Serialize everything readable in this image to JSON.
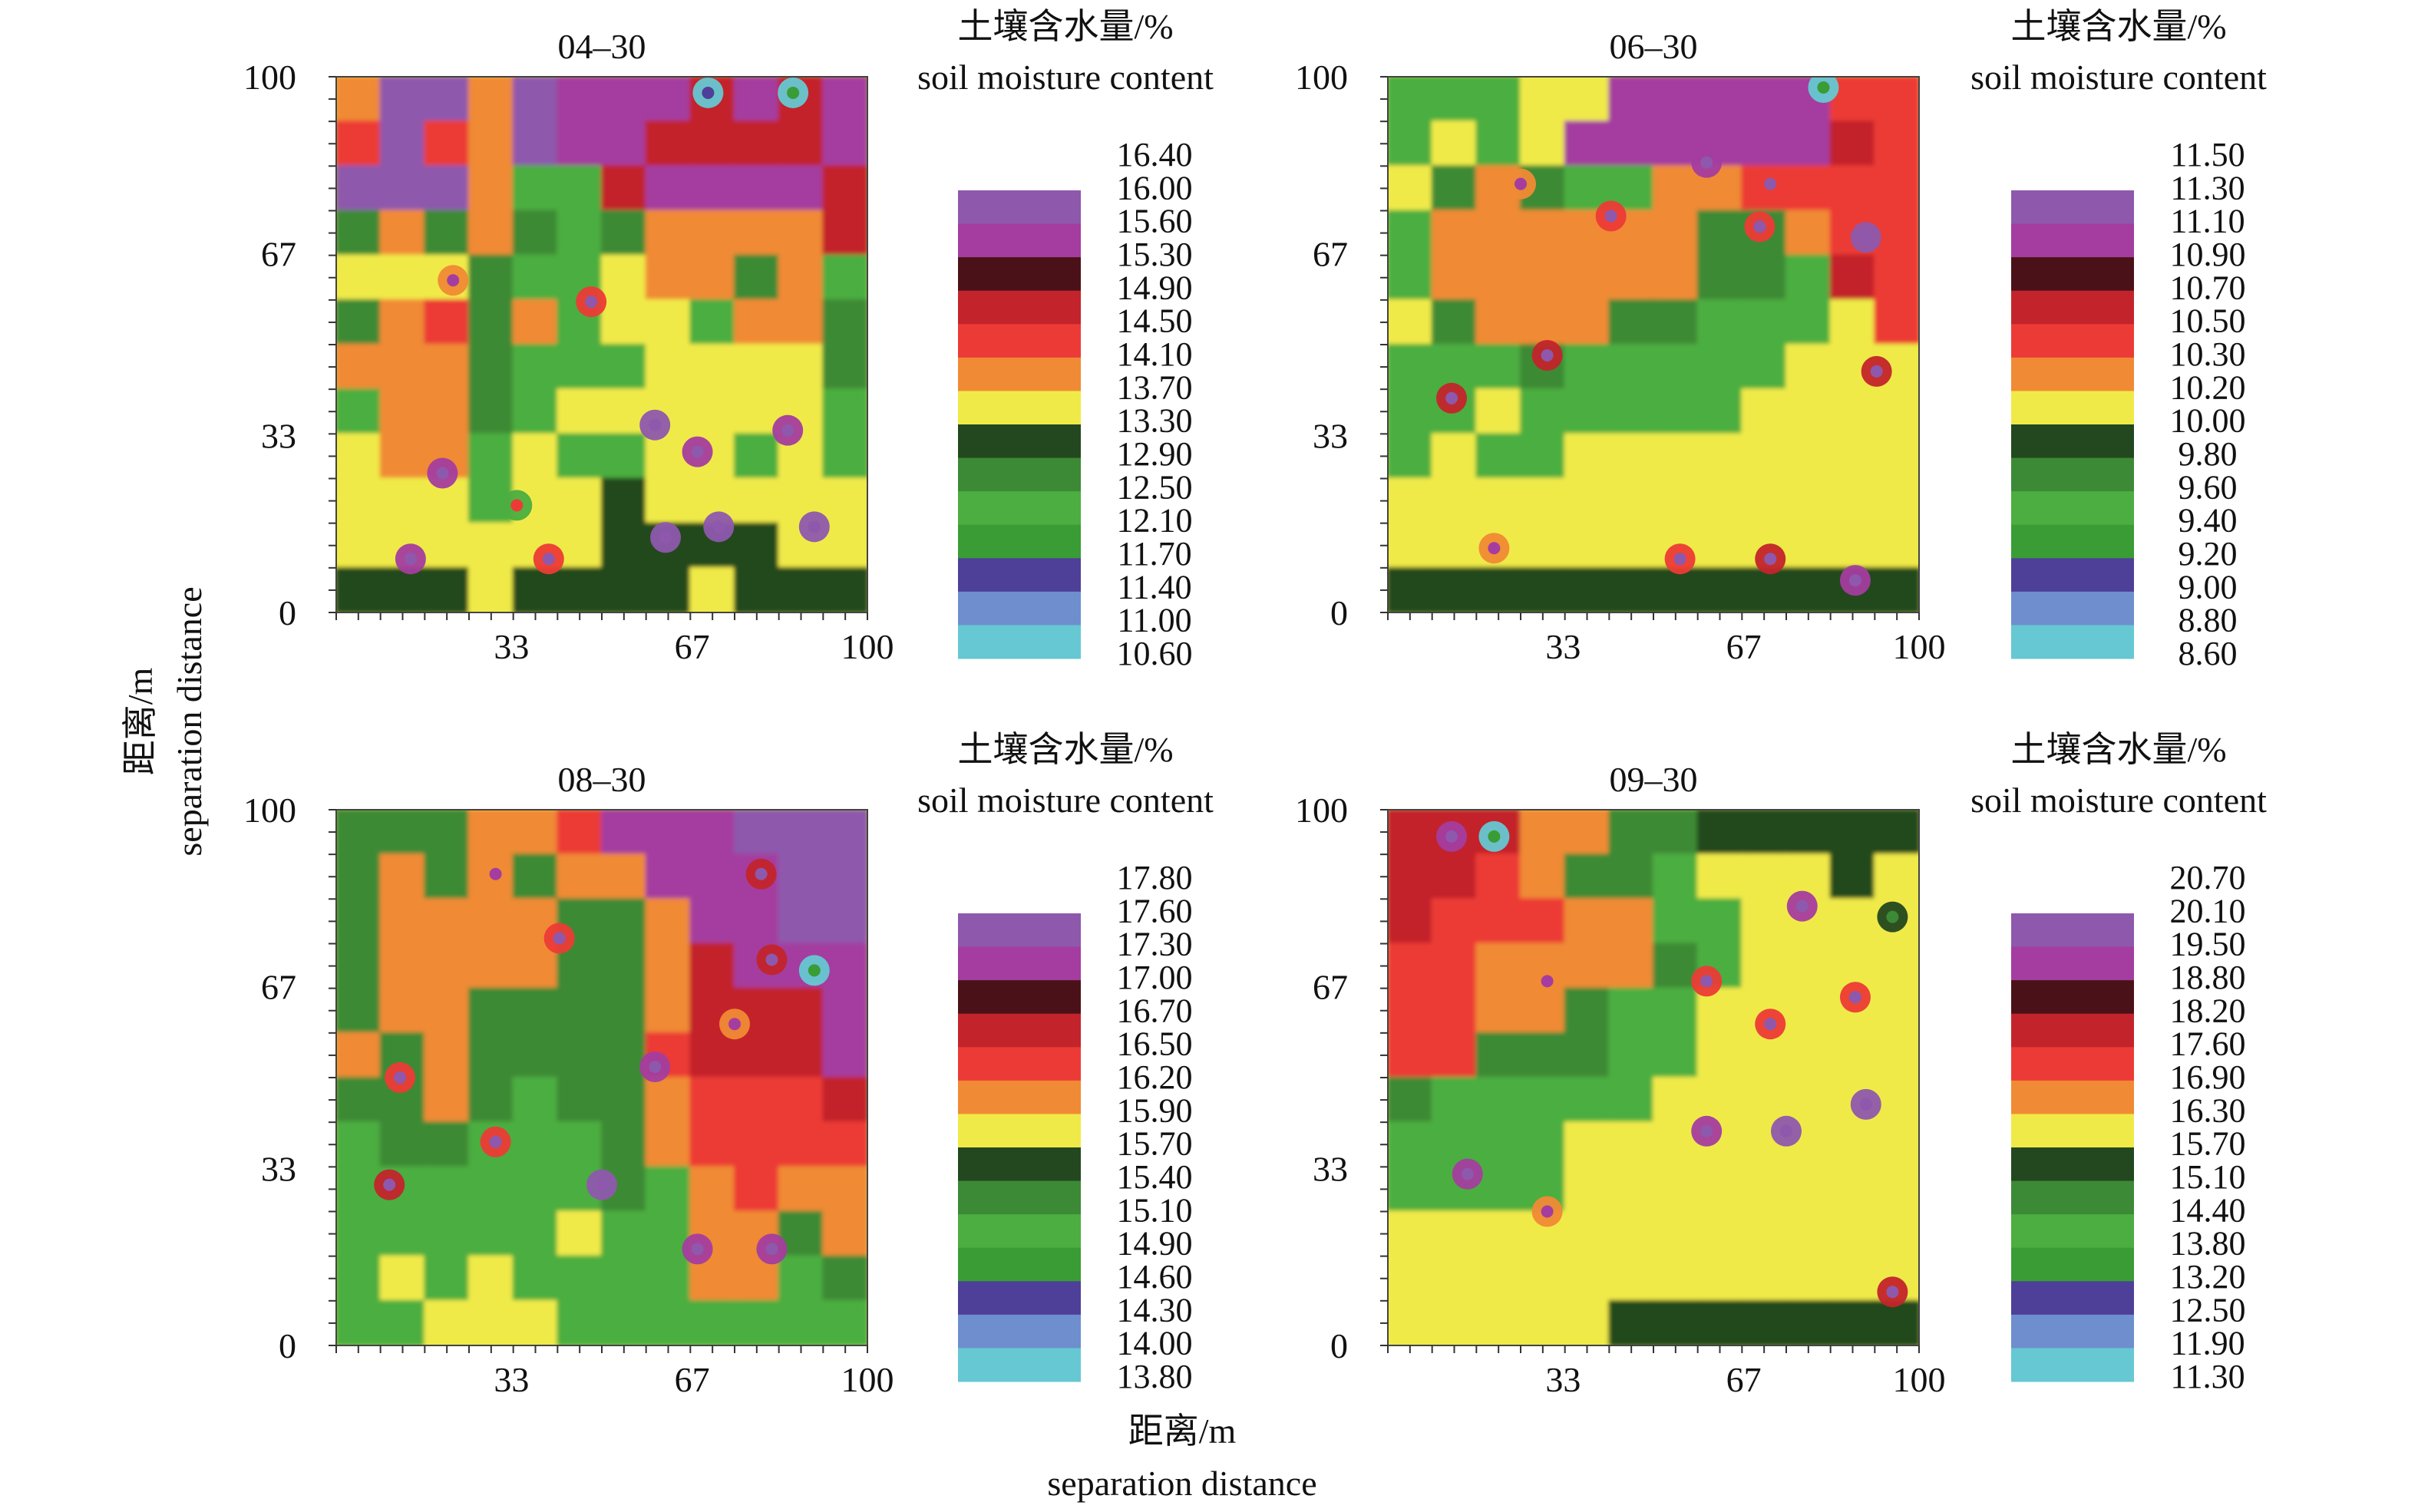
{
  "figure": {
    "y_axis_label_cn": "距离/m",
    "y_axis_label_en": "separation distance",
    "x_axis_label_cn": "距离/m",
    "x_axis_label_en": "separation distance"
  },
  "palette": [
    "#66c8d2",
    "#6e8ecd",
    "#4e3f98",
    "#3a9c35",
    "#4cae40",
    "#3c8a36",
    "#23481f",
    "#f0ea48",
    "#f08a35",
    "#ec3b36",
    "#c3242b",
    "#4a1218",
    "#a43d9f",
    "#8e58ad"
  ],
  "chart_data": [
    {
      "type": "heatmap",
      "title": "04–30",
      "xlabel": "距离/m separation distance",
      "ylabel": "距离/m separation distance",
      "xlim": [
        0,
        100
      ],
      "ylim": [
        0,
        100
      ],
      "x_ticks": [
        "33",
        "67",
        "100"
      ],
      "y_ticks": [
        "100",
        "67",
        "33",
        "0"
      ],
      "colorbar_title": [
        "土壤含水量/%",
        "soil moisture content"
      ],
      "colorbar_levels": [
        "16.40",
        "16.00",
        "15.60",
        "15.30",
        "14.90",
        "14.50",
        "14.10",
        "13.70",
        "13.30",
        "12.90",
        "12.50",
        "12.10",
        "11.70",
        "11.40",
        "11.00",
        "10.60"
      ],
      "value_range": [
        10.6,
        16.4
      ],
      "grid": [
        [
          4,
          0,
          0,
          4,
          0,
          1,
          1,
          1,
          2,
          1,
          2,
          1
        ],
        [
          3,
          0,
          3,
          4,
          0,
          1,
          1,
          2,
          2,
          2,
          2,
          1
        ],
        [
          0,
          0,
          0,
          4,
          6,
          6,
          2,
          1,
          1,
          1,
          1,
          2
        ],
        [
          5,
          4,
          5,
          4,
          5,
          6,
          5,
          4,
          4,
          4,
          4,
          2
        ],
        [
          7,
          7,
          7,
          5,
          6,
          6,
          7,
          4,
          4,
          5,
          4,
          6
        ],
        [
          5,
          4,
          3,
          5,
          4,
          6,
          7,
          7,
          6,
          4,
          4,
          5
        ],
        [
          4,
          4,
          4,
          5,
          6,
          6,
          6,
          7,
          7,
          7,
          7,
          5
        ],
        [
          6,
          4,
          4,
          5,
          6,
          7,
          7,
          7,
          7,
          7,
          7,
          6
        ],
        [
          7,
          4,
          4,
          6,
          7,
          6,
          6,
          7,
          7,
          6,
          7,
          6
        ],
        [
          7,
          7,
          7,
          6,
          7,
          7,
          8,
          7,
          7,
          7,
          7,
          7
        ],
        [
          7,
          7,
          7,
          7,
          7,
          7,
          8,
          8,
          8,
          8,
          7,
          7
        ],
        [
          8,
          8,
          8,
          7,
          8,
          8,
          8,
          8,
          7,
          8,
          8,
          8
        ]
      ],
      "spots": [
        [
          0.7,
          0.03,
          13
        ],
        [
          0.86,
          0.03,
          12
        ],
        [
          0.22,
          0.38,
          4
        ],
        [
          0.48,
          0.42,
          3
        ],
        [
          0.6,
          0.65,
          0
        ],
        [
          0.68,
          0.7,
          1
        ],
        [
          0.85,
          0.66,
          1
        ],
        [
          0.2,
          0.74,
          1
        ],
        [
          0.14,
          0.9,
          1
        ],
        [
          0.34,
          0.8,
          6
        ],
        [
          0.4,
          0.9,
          3
        ],
        [
          0.62,
          0.86,
          0
        ],
        [
          0.72,
          0.84,
          0
        ],
        [
          0.9,
          0.84,
          0
        ]
      ]
    },
    {
      "type": "heatmap",
      "title": "06–30",
      "xlabel": "距离/m separation distance",
      "ylabel": "距离/m separation distance",
      "xlim": [
        0,
        100
      ],
      "ylim": [
        0,
        100
      ],
      "x_ticks": [
        "33",
        "67",
        "100"
      ],
      "y_ticks": [
        "100",
        "67",
        "33",
        "0"
      ],
      "colorbar_title": [
        "土壤含水量/%",
        "soil moisture content"
      ],
      "colorbar_levels": [
        "11.50",
        "11.30",
        "11.10",
        "10.90",
        "10.70",
        "10.50",
        "10.30",
        "10.20",
        "10.00",
        "9.80",
        "9.60",
        "9.40",
        "9.20",
        "9.00",
        "8.80",
        "8.60"
      ],
      "value_range": [
        8.6,
        11.5
      ],
      "grid": [
        [
          6,
          6,
          6,
          7,
          7,
          1,
          1,
          1,
          1,
          1,
          3,
          3
        ],
        [
          6,
          7,
          6,
          7,
          1,
          1,
          1,
          1,
          1,
          1,
          2,
          3
        ],
        [
          7,
          5,
          4,
          5,
          6,
          6,
          4,
          4,
          3,
          3,
          3,
          3
        ],
        [
          6,
          4,
          4,
          4,
          4,
          4,
          4,
          5,
          5,
          4,
          3,
          3
        ],
        [
          6,
          4,
          4,
          4,
          4,
          4,
          4,
          5,
          5,
          6,
          2,
          3
        ],
        [
          7,
          5,
          4,
          4,
          4,
          5,
          5,
          6,
          6,
          6,
          7,
          3
        ],
        [
          6,
          6,
          6,
          5,
          6,
          6,
          6,
          6,
          6,
          7,
          7,
          7
        ],
        [
          6,
          6,
          7,
          6,
          6,
          6,
          6,
          6,
          7,
          7,
          7,
          7
        ],
        [
          6,
          7,
          6,
          6,
          7,
          7,
          7,
          7,
          7,
          7,
          7,
          7
        ],
        [
          7,
          7,
          7,
          7,
          7,
          7,
          7,
          7,
          7,
          7,
          7,
          7
        ],
        [
          7,
          7,
          7,
          7,
          7,
          7,
          7,
          7,
          7,
          7,
          7,
          7
        ],
        [
          8,
          8,
          8,
          8,
          8,
          8,
          8,
          8,
          8,
          8,
          8,
          8
        ]
      ],
      "spots": [
        [
          0.12,
          0.6,
          2
        ],
        [
          0.3,
          0.52,
          2
        ],
        [
          0.42,
          0.26,
          3
        ],
        [
          0.7,
          0.28,
          3
        ],
        [
          0.6,
          0.16,
          1
        ],
        [
          0.92,
          0.55,
          2
        ],
        [
          0.82,
          0.02,
          12
        ],
        [
          0.72,
          0.2,
          3
        ],
        [
          0.25,
          0.2,
          4
        ],
        [
          0.55,
          0.9,
          3
        ],
        [
          0.72,
          0.9,
          2
        ],
        [
          0.88,
          0.94,
          1
        ],
        [
          0.2,
          0.88,
          4
        ],
        [
          0.9,
          0.3,
          0
        ]
      ]
    },
    {
      "type": "heatmap",
      "title": "08–30",
      "xlabel": "距离/m separation distance",
      "ylabel": "距离/m separation distance",
      "xlim": [
        0,
        100
      ],
      "ylim": [
        0,
        100
      ],
      "x_ticks": [
        "33",
        "67",
        "100"
      ],
      "y_ticks": [
        "100",
        "67",
        "33",
        "0"
      ],
      "colorbar_title": [
        "土壤含水量/%",
        "soil moisture content"
      ],
      "colorbar_levels": [
        "17.80",
        "17.60",
        "17.30",
        "17.00",
        "16.70",
        "16.50",
        "16.20",
        "15.90",
        "15.70",
        "15.40",
        "15.10",
        "14.90",
        "14.60",
        "14.30",
        "14.00",
        "13.80"
      ],
      "value_range": [
        13.8,
        17.8
      ],
      "grid": [
        [
          5,
          5,
          5,
          4,
          4,
          3,
          1,
          1,
          1,
          0,
          0,
          0
        ],
        [
          5,
          4,
          5,
          4,
          5,
          4,
          4,
          1,
          1,
          1,
          0,
          0
        ],
        [
          5,
          4,
          4,
          4,
          4,
          5,
          5,
          4,
          1,
          1,
          0,
          0
        ],
        [
          5,
          4,
          4,
          4,
          4,
          5,
          5,
          4,
          2,
          1,
          1,
          1
        ],
        [
          5,
          4,
          4,
          5,
          5,
          5,
          5,
          4,
          2,
          2,
          2,
          1
        ],
        [
          4,
          5,
          4,
          5,
          5,
          5,
          5,
          3,
          2,
          2,
          2,
          1
        ],
        [
          5,
          5,
          4,
          5,
          6,
          5,
          5,
          4,
          3,
          3,
          3,
          2
        ],
        [
          6,
          5,
          5,
          6,
          6,
          6,
          5,
          4,
          3,
          3,
          3,
          3
        ],
        [
          6,
          6,
          6,
          6,
          6,
          6,
          5,
          6,
          4,
          3,
          4,
          4
        ],
        [
          6,
          6,
          6,
          6,
          6,
          7,
          6,
          6,
          4,
          4,
          5,
          4
        ],
        [
          6,
          7,
          6,
          7,
          6,
          6,
          6,
          6,
          4,
          4,
          6,
          5
        ],
        [
          6,
          6,
          7,
          7,
          7,
          6,
          6,
          6,
          6,
          6,
          6,
          6
        ]
      ],
      "spots": [
        [
          0.9,
          0.3,
          12
        ],
        [
          0.82,
          0.28,
          2
        ],
        [
          0.8,
          0.12,
          2
        ],
        [
          0.75,
          0.4,
          4
        ],
        [
          0.6,
          0.48,
          1
        ],
        [
          0.5,
          0.7,
          0
        ],
        [
          0.3,
          0.62,
          3
        ],
        [
          0.12,
          0.5,
          3
        ],
        [
          0.3,
          0.12,
          4
        ],
        [
          0.42,
          0.24,
          3
        ],
        [
          0.1,
          0.7,
          2
        ],
        [
          0.68,
          0.82,
          1
        ],
        [
          0.82,
          0.82,
          1
        ]
      ]
    },
    {
      "type": "heatmap",
      "title": "09–30",
      "xlabel": "距离/m separation distance",
      "ylabel": "距离/m separation distance",
      "xlim": [
        0,
        100
      ],
      "ylim": [
        0,
        100
      ],
      "x_ticks": [
        "33",
        "67",
        "100"
      ],
      "y_ticks": [
        "100",
        "67",
        "33",
        "0"
      ],
      "colorbar_title": [
        "土壤含水量/%",
        "soil moisture content"
      ],
      "colorbar_levels": [
        "20.70",
        "20.10",
        "19.50",
        "18.80",
        "18.20",
        "17.60",
        "16.90",
        "16.30",
        "15.70",
        "15.10",
        "14.40",
        "13.80",
        "13.20",
        "12.50",
        "11.90",
        "11.30"
      ],
      "value_range": [
        11.3,
        20.7
      ],
      "grid": [
        [
          2,
          2,
          2,
          4,
          4,
          5,
          5,
          8,
          8,
          8,
          8,
          8
        ],
        [
          2,
          2,
          3,
          4,
          5,
          5,
          6,
          7,
          7,
          7,
          8,
          7
        ],
        [
          2,
          3,
          3,
          3,
          4,
          4,
          6,
          6,
          7,
          7,
          7,
          7
        ],
        [
          3,
          3,
          4,
          4,
          4,
          4,
          5,
          6,
          7,
          7,
          7,
          7
        ],
        [
          3,
          3,
          4,
          4,
          5,
          6,
          6,
          7,
          7,
          7,
          7,
          7
        ],
        [
          3,
          3,
          5,
          5,
          5,
          6,
          6,
          7,
          7,
          7,
          7,
          7
        ],
        [
          5,
          6,
          6,
          6,
          6,
          6,
          7,
          7,
          7,
          7,
          7,
          7
        ],
        [
          6,
          6,
          6,
          6,
          7,
          7,
          7,
          7,
          7,
          7,
          7,
          7
        ],
        [
          6,
          6,
          6,
          6,
          7,
          7,
          7,
          7,
          7,
          7,
          7,
          7
        ],
        [
          7,
          7,
          7,
          7,
          7,
          7,
          7,
          7,
          7,
          7,
          7,
          7
        ],
        [
          7,
          7,
          7,
          7,
          7,
          7,
          7,
          7,
          7,
          7,
          7,
          7
        ],
        [
          7,
          7,
          7,
          7,
          7,
          8,
          8,
          8,
          8,
          8,
          8,
          8
        ]
      ],
      "spots": [
        [
          0.12,
          0.05,
          1
        ],
        [
          0.2,
          0.05,
          12
        ],
        [
          0.3,
          0.32,
          4
        ],
        [
          0.6,
          0.32,
          3
        ],
        [
          0.72,
          0.4,
          3
        ],
        [
          0.88,
          0.35,
          3
        ],
        [
          0.78,
          0.18,
          1
        ],
        [
          0.6,
          0.6,
          1
        ],
        [
          0.75,
          0.6,
          0
        ],
        [
          0.9,
          0.55,
          0
        ],
        [
          0.3,
          0.75,
          4
        ],
        [
          0.15,
          0.68,
          1
        ],
        [
          0.95,
          0.9,
          2
        ],
        [
          0.95,
          0.2,
          8
        ]
      ]
    }
  ]
}
